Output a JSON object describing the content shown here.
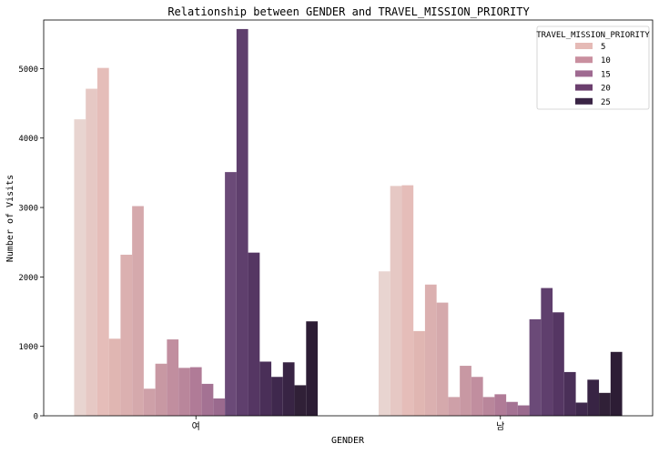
{
  "chart_data": {
    "type": "bar",
    "title": "Relationship between GENDER and TRAVEL_MISSION_PRIORITY",
    "xlabel": "GENDER",
    "ylabel": "Number of Visits",
    "categories": [
      "여",
      "남"
    ],
    "ylim": [
      0,
      5700
    ],
    "yticks": [
      0,
      1000,
      2000,
      3000,
      4000,
      5000
    ],
    "grid": false,
    "legend": {
      "title": "TRAVEL_MISSION_PRIORITY",
      "placement": "top-right",
      "entries": [
        {
          "label": "5",
          "color": "#e5bab6"
        },
        {
          "label": "10",
          "color": "#c98f9f"
        },
        {
          "label": "15",
          "color": "#9f6a91"
        },
        {
          "label": "20",
          "color": "#6b3f6e"
        },
        {
          "label": "25",
          "color": "#3a2445"
        }
      ]
    },
    "series": [
      {
        "hue": 1,
        "color": "#e8d4d0",
        "values": [
          4270,
          2080
        ]
      },
      {
        "hue": 2,
        "color": "#e6c8c4",
        "values": [
          4710,
          3310
        ]
      },
      {
        "hue": 3,
        "color": "#e5bdb9",
        "values": [
          5010,
          3320
        ]
      },
      {
        "hue": 4,
        "color": "#e0b6b2",
        "values": [
          1110,
          1220
        ]
      },
      {
        "hue": 5,
        "color": "#dbb0b0",
        "values": [
          2320,
          1890
        ]
      },
      {
        "hue": 6,
        "color": "#d5a9ac",
        "values": [
          3020,
          1630
        ]
      },
      {
        "hue": 7,
        "color": "#cea0a8",
        "values": [
          390,
          270
        ]
      },
      {
        "hue": 8,
        "color": "#c898a3",
        "values": [
          750,
          720
        ]
      },
      {
        "hue": 9,
        "color": "#c18e9f",
        "values": [
          1100,
          560
        ]
      },
      {
        "hue": 10,
        "color": "#b9869b",
        "values": [
          690,
          270
        ]
      },
      {
        "hue": 11,
        "color": "#b07b97",
        "values": [
          700,
          310
        ]
      },
      {
        "hue": 12,
        "color": "#a47293",
        "values": [
          460,
          200
        ]
      },
      {
        "hue": 13,
        "color": "#9a6a8e",
        "values": [
          250,
          150
        ]
      },
      {
        "hue": 14,
        "color": "#6b4a78",
        "values": [
          3510,
          1390
        ]
      },
      {
        "hue": 15,
        "color": "#5f3f6d",
        "values": [
          5570,
          1840
        ]
      },
      {
        "hue": 16,
        "color": "#553663",
        "values": [
          2350,
          1490
        ]
      },
      {
        "hue": 17,
        "color": "#4a2f58",
        "values": [
          780,
          630
        ]
      },
      {
        "hue": 18,
        "color": "#3f284d",
        "values": [
          560,
          190
        ]
      },
      {
        "hue": 19,
        "color": "#382444",
        "values": [
          770,
          520
        ]
      },
      {
        "hue": 20,
        "color": "#302037",
        "values": [
          440,
          330
        ]
      },
      {
        "hue": 21,
        "color": "#2d1d35",
        "values": [
          1360,
          920
        ]
      }
    ]
  }
}
